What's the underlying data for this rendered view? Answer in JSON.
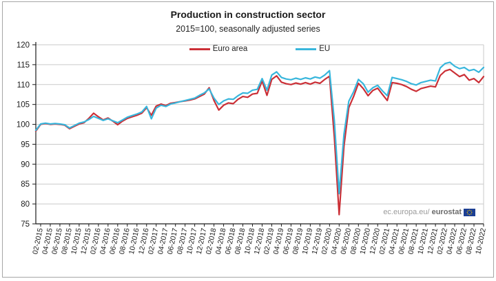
{
  "figure": {
    "title": "Production in construction sector",
    "subtitle": "2015=100, seasonally adjusted series",
    "watermark_plain": "ec.europa.eu/",
    "watermark_bold": "eurostat",
    "flag_icon_color": "#1c3f94",
    "flag_star_color": "#ffcc00"
  },
  "chart_data": {
    "type": "line",
    "title": "Production in construction sector",
    "subtitle": "2015=100, seasonally adjusted series",
    "x_frequency": "monthly",
    "x_range": [
      "01-2015",
      "10-2022"
    ],
    "x_tick_labels": [
      "02-2015",
      "04-2015",
      "06-2015",
      "08-2015",
      "10-2015",
      "12-2015",
      "02-2016",
      "04-2016",
      "06-2016",
      "08-2016",
      "10-2016",
      "12-2016",
      "02-2017",
      "04-2017",
      "06-2017",
      "08-2017",
      "10-2017",
      "12-2017",
      "02-2018",
      "04-2018",
      "06-2018",
      "08-2018",
      "10-2018",
      "12-2018",
      "02-2019",
      "04-2019",
      "06-2019",
      "08-2019",
      "10-2019",
      "12-2019",
      "02-2020",
      "04-2020",
      "06-2020",
      "08-2020",
      "10-2020",
      "12-2020",
      "02-2021",
      "04-2021",
      "06-2021",
      "08-2021",
      "10-2021",
      "12-2021",
      "02-2022",
      "04-2022",
      "06-2022",
      "08-2022",
      "10-2022"
    ],
    "ylim": [
      75,
      120
    ],
    "y_ticks": [
      75,
      80,
      85,
      90,
      95,
      100,
      105,
      110,
      115,
      120
    ],
    "grid": "horizontal",
    "legend_position": "top-center",
    "axis_color": "#1a1a1a",
    "grid_color": "#c9c9c9",
    "series": [
      {
        "name": "Euro area",
        "color": "#cb2f36",
        "values": [
          98.3,
          100.0,
          100.2,
          100.0,
          100.1,
          100.0,
          99.8,
          98.9,
          99.5,
          100.1,
          100.4,
          101.5,
          102.8,
          101.9,
          101.1,
          101.6,
          100.8,
          99.9,
          100.8,
          101.5,
          101.9,
          102.3,
          102.8,
          104.2,
          102.3,
          104.6,
          105.1,
          104.7,
          105.3,
          105.5,
          105.7,
          105.9,
          106.1,
          106.4,
          107.0,
          107.6,
          109.2,
          106.0,
          103.6,
          104.8,
          105.4,
          105.2,
          106.3,
          107.0,
          106.8,
          107.6,
          107.8,
          110.9,
          107.3,
          111.3,
          112.2,
          110.6,
          110.2,
          110.0,
          110.4,
          110.1,
          110.5,
          110.1,
          110.6,
          110.3,
          111.3,
          112.1,
          96.8,
          77.3,
          94.5,
          104.2,
          107.0,
          110.3,
          109.0,
          107.2,
          108.5,
          109.1,
          107.5,
          106.0,
          110.5,
          110.3,
          110.0,
          109.5,
          108.8,
          108.3,
          109.0,
          109.3,
          109.6,
          109.4,
          112.3,
          113.4,
          113.8,
          112.9,
          112.0,
          112.5,
          111.1,
          111.5,
          110.5,
          112.0
        ]
      },
      {
        "name": "EU",
        "color": "#38b6dc",
        "values": [
          98.5,
          100.1,
          100.3,
          100.1,
          100.2,
          100.1,
          99.9,
          99.1,
          99.7,
          100.3,
          100.6,
          101.2,
          102.0,
          101.5,
          101.0,
          101.4,
          100.9,
          100.4,
          101.1,
          101.8,
          102.2,
          102.6,
          103.1,
          104.5,
          101.4,
          104.1,
          104.8,
          104.5,
          105.1,
          105.4,
          105.7,
          106.0,
          106.3,
          106.6,
          107.3,
          107.9,
          108.9,
          106.6,
          105.0,
          105.9,
          106.4,
          106.3,
          107.2,
          107.9,
          107.8,
          108.6,
          108.8,
          111.5,
          108.6,
          112.4,
          113.2,
          111.8,
          111.4,
          111.2,
          111.6,
          111.3,
          111.7,
          111.4,
          111.9,
          111.6,
          112.4,
          113.5,
          101.0,
          82.6,
          97.5,
          105.8,
          108.2,
          111.3,
          110.2,
          108.1,
          109.2,
          109.8,
          108.4,
          107.2,
          111.8,
          111.5,
          111.2,
          110.8,
          110.2,
          109.9,
          110.5,
          110.8,
          111.1,
          110.9,
          114.2,
          115.3,
          115.6,
          114.6,
          114.0,
          114.3,
          113.5,
          113.8,
          113.1,
          114.3
        ]
      }
    ]
  }
}
